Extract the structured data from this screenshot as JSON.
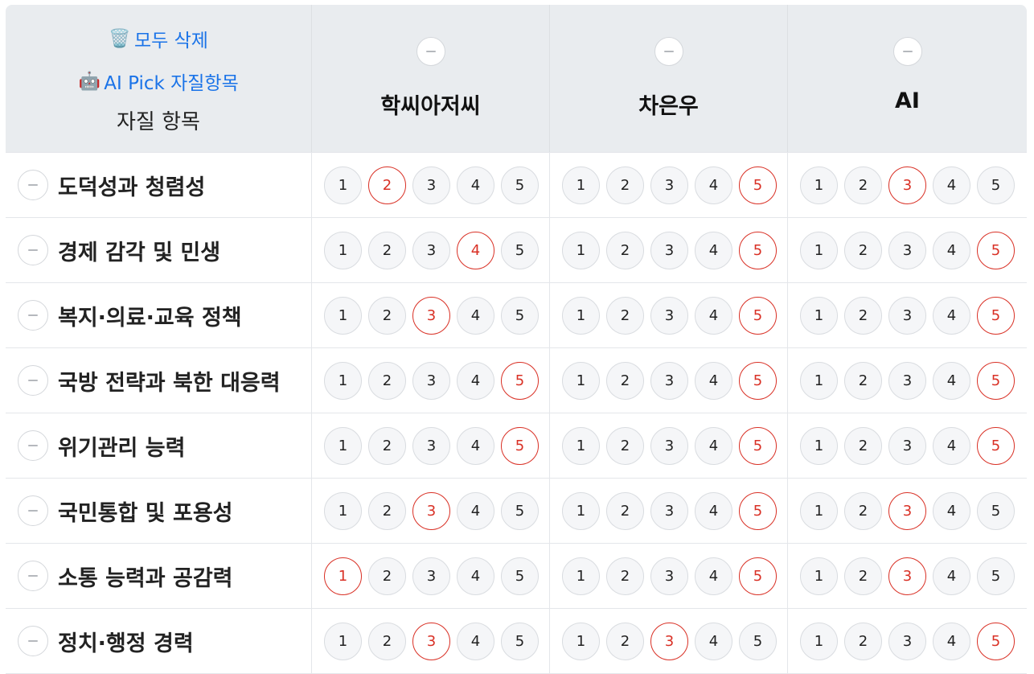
{
  "header": {
    "delete_all_emoji": "🗑️",
    "delete_all_label": "모두 삭제",
    "ai_pick_emoji": "🤖",
    "ai_pick_label": "AI Pick 자질항목",
    "criteria_title": "자질 항목"
  },
  "candidates": [
    "학씨아저씨",
    "차은우",
    "AI"
  ],
  "score_labels": [
    "1",
    "2",
    "3",
    "4",
    "5"
  ],
  "colors": {
    "selected": "#d93025",
    "link": "#1a73e8",
    "header_bg": "#e9ecef"
  },
  "rows": [
    {
      "label": "도덕성과 청렴성",
      "selected": [
        2,
        5,
        3
      ]
    },
    {
      "label": "경제 감각 및 민생",
      "selected": [
        4,
        5,
        5
      ]
    },
    {
      "label": "복지·의료·교육 정책",
      "selected": [
        3,
        5,
        5
      ]
    },
    {
      "label": "국방 전략과 북한 대응력",
      "selected": [
        5,
        5,
        5
      ]
    },
    {
      "label": "위기관리 능력",
      "selected": [
        5,
        5,
        5
      ]
    },
    {
      "label": "국민통합 및 포용성",
      "selected": [
        3,
        5,
        3
      ]
    },
    {
      "label": "소통 능력과 공감력",
      "selected": [
        1,
        5,
        3
      ]
    },
    {
      "label": "정치·행정 경력",
      "selected": [
        3,
        3,
        5
      ]
    }
  ]
}
